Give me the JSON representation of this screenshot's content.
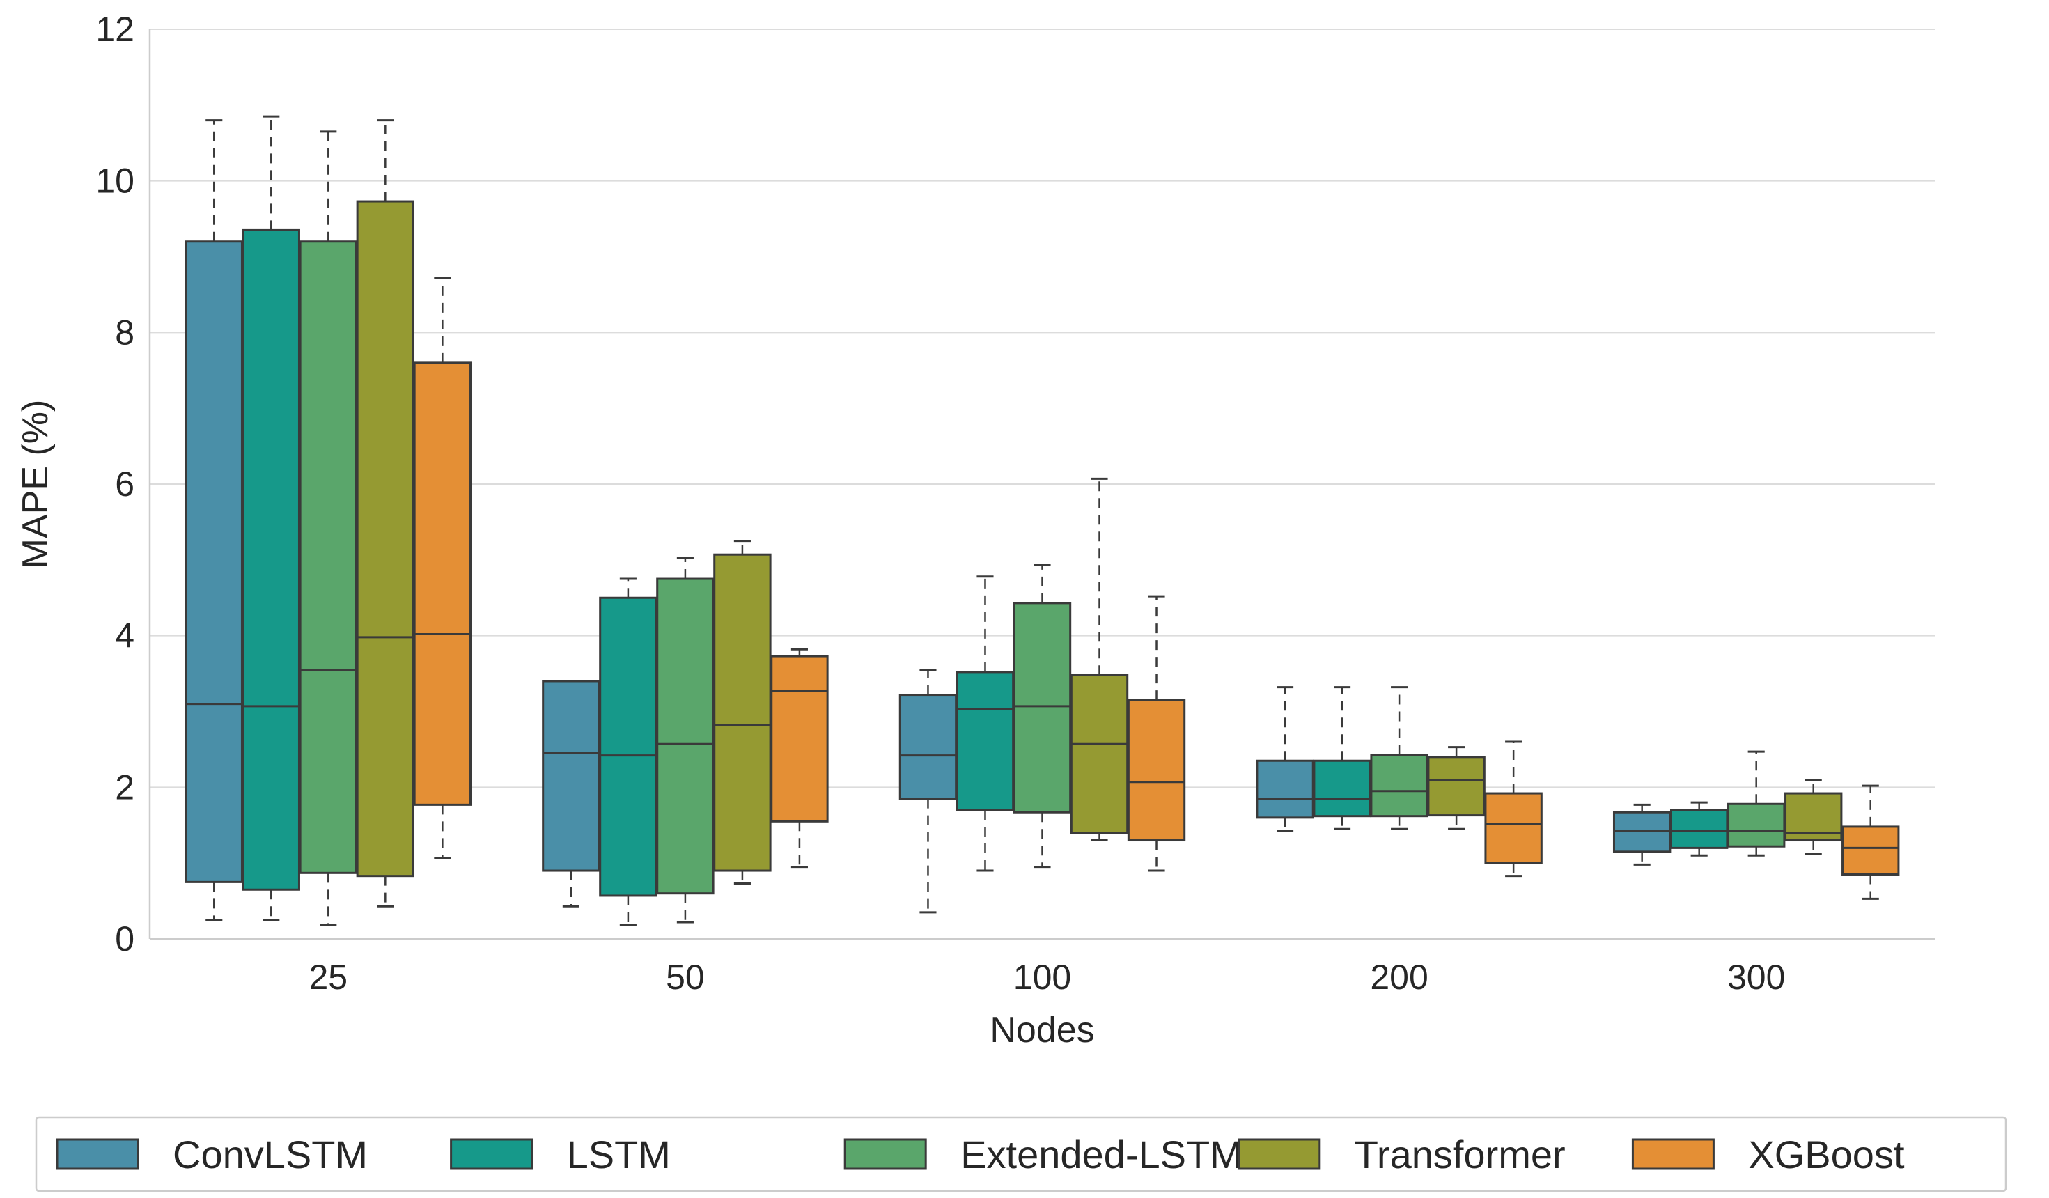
{
  "chart_data": {
    "type": "box",
    "title": "",
    "xlabel": "Nodes",
    "ylabel": "MAPE (%)",
    "ylim": [
      0,
      12
    ],
    "yticks": [
      "0",
      "2",
      "4",
      "6",
      "8",
      "10",
      "12"
    ],
    "grid": "horizontal",
    "categories": [
      "25",
      "50",
      "100",
      "200",
      "300"
    ],
    "legend_position": "bottom",
    "series": [
      {
        "name": "ConvLSTM",
        "color": "#4a8fa8",
        "boxes": [
          {
            "whislo": 0.25,
            "q1": 0.75,
            "med": 3.1,
            "q3": 9.2,
            "whishi": 10.8
          },
          {
            "whislo": 0.43,
            "q1": 0.9,
            "med": 2.45,
            "q3": 3.4,
            "whishi": 3.4
          },
          {
            "whislo": 0.35,
            "q1": 1.85,
            "med": 2.42,
            "q3": 3.22,
            "whishi": 3.55
          },
          {
            "whislo": 1.42,
            "q1": 1.6,
            "med": 1.85,
            "q3": 2.35,
            "whishi": 3.32
          },
          {
            "whislo": 0.98,
            "q1": 1.15,
            "med": 1.42,
            "q3": 1.67,
            "whishi": 1.77
          }
        ]
      },
      {
        "name": "LSTM",
        "color": "#16998a",
        "boxes": [
          {
            "whislo": 0.25,
            "q1": 0.65,
            "med": 3.07,
            "q3": 9.35,
            "whishi": 10.85
          },
          {
            "whislo": 0.18,
            "q1": 0.57,
            "med": 2.42,
            "q3": 4.5,
            "whishi": 4.75
          },
          {
            "whislo": 0.9,
            "q1": 1.7,
            "med": 3.03,
            "q3": 3.52,
            "whishi": 4.78
          },
          {
            "whislo": 1.45,
            "q1": 1.62,
            "med": 1.85,
            "q3": 2.35,
            "whishi": 3.32
          },
          {
            "whislo": 1.1,
            "q1": 1.2,
            "med": 1.42,
            "q3": 1.7,
            "whishi": 1.8
          }
        ]
      },
      {
        "name": "Extended-LSTM",
        "color": "#5aa66b",
        "boxes": [
          {
            "whislo": 0.18,
            "q1": 0.87,
            "med": 3.55,
            "q3": 9.2,
            "whishi": 10.65
          },
          {
            "whislo": 0.22,
            "q1": 0.6,
            "med": 2.57,
            "q3": 4.75,
            "whishi": 5.03
          },
          {
            "whislo": 0.95,
            "q1": 1.67,
            "med": 3.07,
            "q3": 4.43,
            "whishi": 4.93
          },
          {
            "whislo": 1.45,
            "q1": 1.62,
            "med": 1.95,
            "q3": 2.43,
            "whishi": 3.32
          },
          {
            "whislo": 1.1,
            "q1": 1.22,
            "med": 1.42,
            "q3": 1.78,
            "whishi": 2.47
          }
        ]
      },
      {
        "name": "Transformer",
        "color": "#959a32",
        "boxes": [
          {
            "whislo": 0.43,
            "q1": 0.83,
            "med": 3.98,
            "q3": 9.73,
            "whishi": 10.8
          },
          {
            "whislo": 0.73,
            "q1": 0.9,
            "med": 2.82,
            "q3": 5.07,
            "whishi": 5.25
          },
          {
            "whislo": 1.3,
            "q1": 1.4,
            "med": 2.57,
            "q3": 3.48,
            "whishi": 6.07
          },
          {
            "whislo": 1.45,
            "q1": 1.63,
            "med": 2.1,
            "q3": 2.4,
            "whishi": 2.53
          },
          {
            "whislo": 1.12,
            "q1": 1.3,
            "med": 1.4,
            "q3": 1.92,
            "whishi": 2.1
          }
        ]
      },
      {
        "name": "XGBoost",
        "color": "#e48f35",
        "boxes": [
          {
            "whislo": 1.07,
            "q1": 1.77,
            "med": 4.02,
            "q3": 7.6,
            "whishi": 8.72
          },
          {
            "whislo": 0.95,
            "q1": 1.55,
            "med": 3.27,
            "q3": 3.73,
            "whishi": 3.82
          },
          {
            "whislo": 0.9,
            "q1": 1.3,
            "med": 2.07,
            "q3": 3.15,
            "whishi": 4.52
          },
          {
            "whislo": 0.83,
            "q1": 1.0,
            "med": 1.52,
            "q3": 1.92,
            "whishi": 2.6
          },
          {
            "whislo": 0.53,
            "q1": 0.85,
            "med": 1.2,
            "q3": 1.48,
            "whishi": 2.02
          }
        ]
      }
    ]
  }
}
